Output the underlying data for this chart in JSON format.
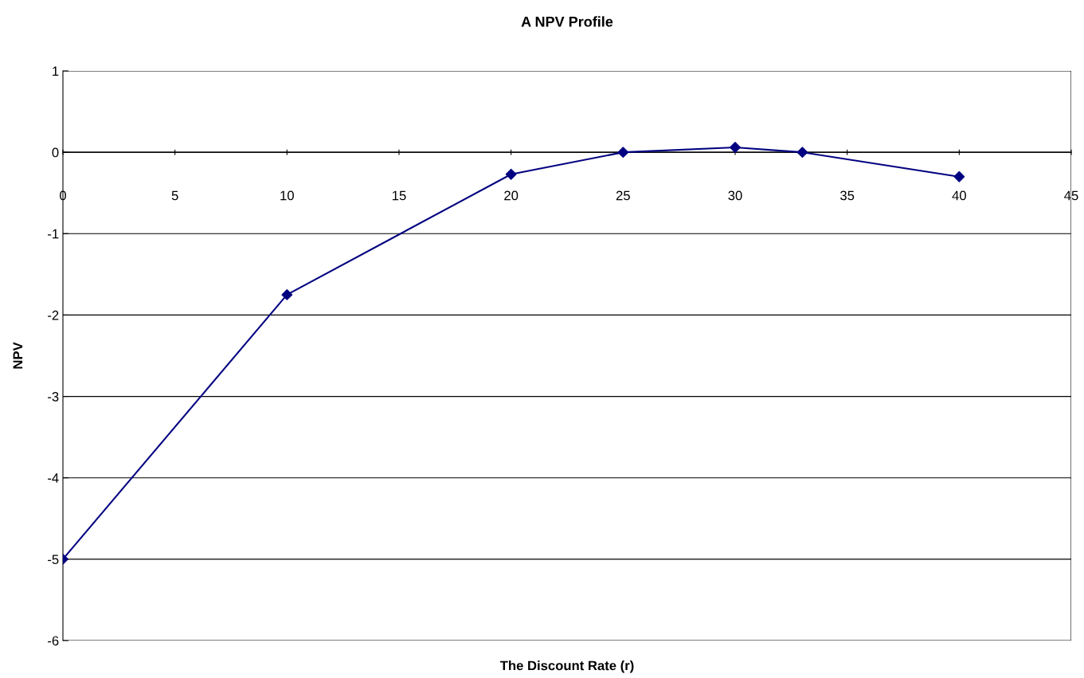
{
  "chart_data": {
    "type": "line",
    "title": "A NPV Profile",
    "xlabel": "The Discount Rate (r)",
    "ylabel": "NPV",
    "x": [
      0,
      10,
      20,
      25,
      30,
      33,
      40
    ],
    "series": [
      {
        "color": "#000080",
        "values": [
          -5,
          -1.75,
          -0.27,
          0,
          0.06,
          0,
          -0.3
        ]
      }
    ],
    "xlim": [
      0,
      45
    ],
    "xticks": [
      0,
      5,
      10,
      15,
      20,
      25,
      30,
      35,
      40,
      45
    ],
    "ylim": [
      -6,
      1
    ],
    "yticks": [
      -6,
      -5,
      -4,
      -3,
      -2,
      -1,
      0,
      1
    ],
    "grid": "y",
    "marker": "diamond",
    "line_style": "solid"
  }
}
